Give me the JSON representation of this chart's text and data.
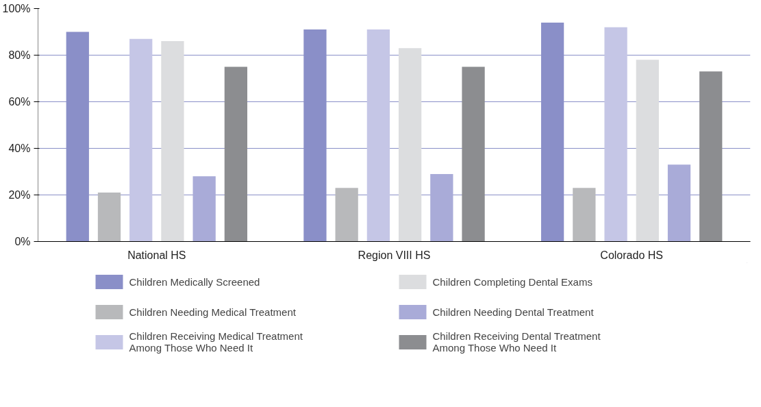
{
  "chart_data": {
    "type": "bar",
    "categories": [
      "National HS",
      "Region VIII HS",
      "Colorado HS"
    ],
    "series": [
      {
        "name": "Children Medically Screened",
        "color": "#8a8fc8",
        "values": [
          90,
          91,
          94
        ]
      },
      {
        "name": "Children Needing Medical Treatment",
        "color": "#b8b9bb",
        "values": [
          21,
          23,
          23
        ]
      },
      {
        "name": "Children Receiving Medical Treatment Among Those Who Need It",
        "color": "#c5c6e6",
        "values": [
          87,
          91,
          92
        ]
      },
      {
        "name": "Children Completing Dental Exams",
        "color": "#dcdddf",
        "values": [
          86,
          83,
          78
        ]
      },
      {
        "name": "Children Needing Dental Treatment",
        "color": "#a9abd8",
        "values": [
          28,
          29,
          33
        ]
      },
      {
        "name": "Children Receiving Dental Treatment Among Those Who Need It",
        "color": "#8c8d90",
        "values": [
          75,
          75,
          73
        ]
      }
    ],
    "ylim": [
      0,
      100
    ],
    "yticks": [
      {
        "value": 0,
        "label": "0%"
      },
      {
        "value": 20,
        "label": "20%"
      },
      {
        "value": 40,
        "label": "40%"
      },
      {
        "value": 60,
        "label": "60%"
      },
      {
        "value": 80,
        "label": "80%"
      },
      {
        "value": 100,
        "label": "100%"
      }
    ],
    "grid": "y",
    "legend": "bottom"
  }
}
